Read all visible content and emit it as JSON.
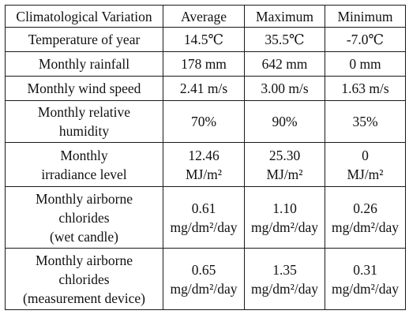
{
  "table": {
    "headers": [
      "Climatological Variation",
      "Average",
      "Maximum",
      "Minimum"
    ],
    "rows": [
      {
        "variation": "Temperature of year",
        "average": "14.5℃",
        "maximum": "35.5℃",
        "minimum": "-7.0℃"
      },
      {
        "variation": "Monthly rainfall",
        "average": "178 mm",
        "maximum": "642 mm",
        "minimum": "0 mm"
      },
      {
        "variation": "Monthly wind speed",
        "average": "2.41 m/s",
        "maximum": "3.00 m/s",
        "minimum": "1.63 m/s"
      },
      {
        "variation": "Monthly relative\nhumidity",
        "average": "70%",
        "maximum": "90%",
        "minimum": "35%"
      },
      {
        "variation": "Monthly\nirradiance level",
        "average": "12.46\nMJ/m²",
        "maximum": "25.30\nMJ/m²",
        "minimum": "0\nMJ/m²"
      },
      {
        "variation": "Monthly airborne\nchlorides\n(wet candle)",
        "average": "0.61\nmg/dm²/day",
        "maximum": "1.10\nmg/dm²/day",
        "minimum": "0.26\nmg/dm²/day"
      },
      {
        "variation": "Monthly airborne\nchlorides\n(measurement device)",
        "average": "0.65\nmg/dm²/day",
        "maximum": "1.35\nmg/dm²/day",
        "minimum": "0.31\nmg/dm²/day"
      }
    ]
  }
}
